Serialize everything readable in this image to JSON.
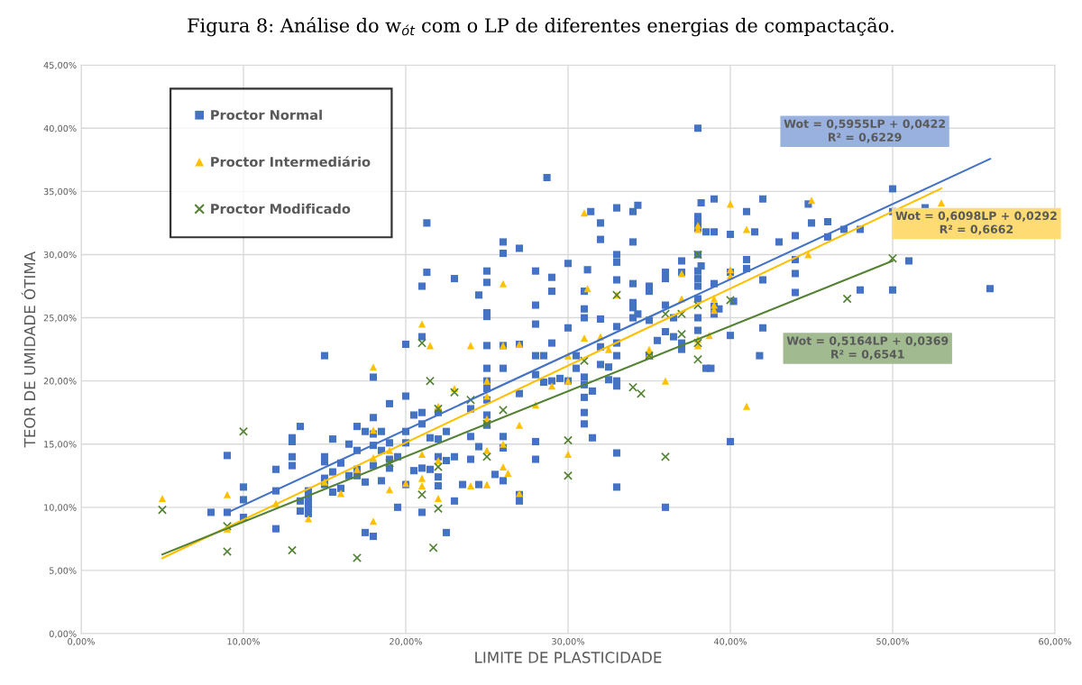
{
  "chart_data": {
    "type": "scatter",
    "title": "Figura 8: Análise do w$_{ót}$ com o LP de diferentes energias de compactação.",
    "xlabel": "LIMITE DE PLASTICIDADE",
    "ylabel": "TEOR DE UMIDADE ÓTIMA",
    "xlim": [
      0,
      60
    ],
    "ylim": [
      0,
      45
    ],
    "xticks": [
      {
        "value": 0,
        "label": "0,00%"
      },
      {
        "value": 10,
        "label": "10,00%"
      },
      {
        "value": 20,
        "label": "20,00%"
      },
      {
        "value": 30,
        "label": "30,00%"
      },
      {
        "value": 40,
        "label": "40,00%"
      },
      {
        "value": 50,
        "label": "50,00%"
      },
      {
        "value": 60,
        "label": "60,00%"
      }
    ],
    "yticks": [
      {
        "value": 0,
        "label": "0,00%"
      },
      {
        "value": 5,
        "label": "5,00%"
      },
      {
        "value": 10,
        "label": "10,00%"
      },
      {
        "value": 15,
        "label": "15,00%"
      },
      {
        "value": 20,
        "label": "20,00%"
      },
      {
        "value": 25,
        "label": "25,00%"
      },
      {
        "value": 30,
        "label": "30,00%"
      },
      {
        "value": 35,
        "label": "35,00%"
      },
      {
        "value": 40,
        "label": "40,00%"
      },
      {
        "value": 45,
        "label": "45,00%"
      }
    ],
    "grid": true,
    "legend": "top left",
    "series": [
      {
        "name": "Proctor Normal",
        "color": "#4472c4",
        "marker": "square",
        "x": [
          8,
          9,
          9,
          10,
          10,
          10,
          12,
          12,
          12,
          13,
          13,
          13,
          13,
          13.5,
          13.5,
          13.5,
          14,
          14,
          14,
          14,
          14,
          15,
          15,
          15,
          15,
          15,
          15.5,
          15.5,
          15.5,
          16,
          16,
          16.5,
          16.5,
          17,
          17,
          17,
          17,
          17.5,
          17.5,
          17.5,
          18,
          18,
          18,
          18,
          18,
          18,
          18.5,
          18.5,
          18.5,
          19,
          19,
          19,
          19,
          19.5,
          19.5,
          20,
          20,
          20,
          20,
          20,
          20.5,
          20.5,
          21,
          21,
          21,
          21,
          21,
          21,
          21.3,
          21.3,
          21.5,
          21.5,
          22,
          22,
          22,
          22,
          22,
          22.5,
          22.5,
          22.5,
          23,
          23,
          23,
          23.5,
          24,
          24,
          24,
          24.5,
          24.5,
          24.5,
          25,
          25,
          25,
          25,
          25,
          25,
          25,
          25,
          25,
          25,
          25,
          25.5,
          26,
          26,
          26,
          26,
          26,
          26,
          26,
          27,
          27,
          27,
          27,
          27,
          28,
          28,
          28,
          28,
          28,
          28,
          28,
          28.5,
          28.5,
          28.7,
          29,
          29,
          29,
          29,
          29.5,
          30,
          30,
          30,
          30.5,
          30.5,
          31,
          31,
          31,
          31,
          31,
          31,
          31,
          31,
          31.2,
          31.4,
          31.5,
          31.5,
          32,
          32,
          32,
          32,
          32,
          32.5,
          32.5,
          33,
          33,
          33,
          33,
          33,
          33,
          33,
          33,
          33,
          33,
          33,
          34,
          34,
          34,
          34,
          34,
          34,
          34.3,
          34.3,
          35,
          35,
          35,
          35,
          35.5,
          36,
          36,
          36,
          36,
          36,
          36.5,
          36.5,
          37,
          37,
          37,
          37,
          38,
          38,
          38,
          38,
          38,
          38,
          38,
          38,
          38,
          38,
          38,
          38.2,
          38.2,
          38.5,
          38.5,
          38.8,
          39,
          39,
          39,
          39,
          39,
          39.3,
          40,
          40,
          40,
          40,
          40.2,
          41,
          41,
          41,
          41.5,
          41.8,
          42,
          42,
          42,
          43,
          44,
          44,
          44,
          44,
          44.8,
          45,
          46,
          46,
          47,
          48,
          48,
          50,
          50,
          50,
          51,
          52,
          56
        ],
        "values": [
          9.6,
          14.1,
          9.6,
          11.6,
          10.6,
          9.2,
          13,
          11.3,
          8.3,
          15.5,
          15.2,
          14,
          13.3,
          16.4,
          10.5,
          9.7,
          11.3,
          10.8,
          10.4,
          10,
          9.5,
          22,
          14,
          13.6,
          12.3,
          11.8,
          15.4,
          12.8,
          11.2,
          13.5,
          11.5,
          15,
          12.5,
          16.4,
          14.5,
          13,
          12.5,
          16,
          12,
          8,
          20.3,
          17.1,
          15.8,
          14.9,
          13.3,
          7.7,
          16,
          14.5,
          12.1,
          18.2,
          15.1,
          13.8,
          13.1,
          14,
          10,
          22.9,
          18.8,
          16,
          15.1,
          11.8,
          17.3,
          12.9,
          27.5,
          23.5,
          17.5,
          16.6,
          13.1,
          9.6,
          32.5,
          28.6,
          15.5,
          13,
          17.5,
          15.4,
          14,
          12.4,
          11.7,
          16,
          13.7,
          8,
          28.1,
          14,
          10.5,
          11.8,
          17.8,
          15.6,
          13.8,
          26.8,
          14.8,
          11.8,
          28.7,
          27.8,
          25.4,
          25.1,
          22.8,
          21,
          20,
          19.4,
          18.5,
          17.3,
          16.5,
          12.6,
          31,
          30.1,
          22.8,
          21,
          15.6,
          14.7,
          12.1,
          30.5,
          22.9,
          19,
          11,
          10.5,
          28.7,
          26,
          24.5,
          22,
          20.5,
          15.2,
          13.8,
          22,
          19.9,
          36.1,
          28.2,
          27.1,
          23,
          20,
          20.2,
          29.3,
          24.2,
          20,
          22,
          21,
          27.1,
          25.7,
          25,
          20.3,
          19.7,
          18.7,
          16.6,
          17.5,
          28.8,
          33.4,
          19.2,
          15.5,
          32.5,
          31.2,
          24.9,
          21.3,
          22.7,
          20.1,
          21.1,
          33.7,
          30,
          29.4,
          28,
          24.3,
          23,
          22,
          20,
          19.6,
          14.3,
          11.6,
          33.4,
          31,
          27.7,
          26.2,
          25.8,
          25,
          33.9,
          25.3,
          27.5,
          27.1,
          24.8,
          22,
          23.2,
          28.6,
          28.1,
          26,
          23.9,
          10,
          25,
          23.5,
          29.5,
          28.6,
          23,
          22.5,
          40,
          33,
          32.5,
          32.1,
          30,
          28.7,
          28.1,
          27.5,
          26.5,
          25,
          24,
          34.1,
          29.1,
          31.8,
          21,
          21,
          34.4,
          31.8,
          27.7,
          25.9,
          25.3,
          25.7,
          31.6,
          28.6,
          23.6,
          15.2,
          26.3,
          29.6,
          33.4,
          28.9,
          31.8,
          22,
          34.4,
          28,
          24.2,
          31,
          31.5,
          29.6,
          28.5,
          27,
          34,
          32.5,
          32.6,
          31.4,
          32,
          32,
          27.2,
          35.2,
          33.4,
          27.2,
          29.5,
          33.7,
          27.3
        ]
      },
      {
        "name": "Proctor Intermediário",
        "color": "#ffc000",
        "marker": "triangle",
        "x": [
          5,
          9,
          9,
          12,
          14,
          15,
          16,
          17,
          18,
          18,
          18,
          18,
          19,
          19,
          20,
          21,
          21,
          21,
          21,
          21.5,
          22,
          22,
          22,
          23,
          24,
          24,
          25,
          25,
          25,
          25,
          25,
          26,
          26,
          26,
          26,
          26.3,
          27,
          27,
          27,
          28,
          29,
          30,
          30,
          30,
          31,
          31,
          31.2,
          32,
          32.5,
          33,
          35,
          35,
          36,
          37,
          37,
          38,
          38,
          38,
          38,
          38.7,
          39,
          39,
          39,
          40,
          40,
          40,
          41,
          41,
          44.8,
          45,
          53
        ],
        "values": [
          10.7,
          11,
          8.3,
          10.3,
          9.1,
          12,
          11.1,
          13,
          21.1,
          16.1,
          13.9,
          8.9,
          14.5,
          11.4,
          11.9,
          24.5,
          14.2,
          12.3,
          11.7,
          22.8,
          18,
          13.7,
          10.7,
          19.4,
          22.8,
          11.7,
          20,
          18.8,
          17,
          14.5,
          11.8,
          27.7,
          22.8,
          15,
          13.2,
          12.7,
          22.9,
          16.5,
          11.1,
          18.1,
          19.6,
          22,
          20,
          14.2,
          33.3,
          23.4,
          27.3,
          23.5,
          22.5,
          26.8,
          22.1,
          22.5,
          20,
          26.5,
          28.5,
          32.3,
          32,
          23.3,
          22.8,
          23.6,
          25.6,
          26.5,
          26,
          34,
          28.8,
          28.3,
          32,
          18,
          30,
          34.3,
          34.1
        ]
      },
      {
        "name": "Proctor Modificado",
        "color": "#548235",
        "marker": "cross",
        "x": [
          5,
          9,
          9,
          10,
          13,
          17,
          19,
          21,
          21,
          21.5,
          21.7,
          22,
          22,
          22,
          23,
          24,
          25,
          25,
          26,
          30,
          30,
          31,
          33,
          34,
          34.5,
          35,
          36,
          36,
          37,
          37,
          38,
          38,
          38,
          38,
          40,
          47.2,
          50
        ],
        "values": [
          9.8,
          8.5,
          6.5,
          16,
          6.6,
          6,
          13.5,
          23,
          11,
          20,
          6.8,
          17.8,
          13.2,
          9.9,
          19.1,
          18.5,
          16.6,
          14,
          17.7,
          15.3,
          12.5,
          21.6,
          26.8,
          19.5,
          19,
          22,
          25.3,
          14,
          25.3,
          23.7,
          30,
          26,
          21.7,
          23,
          26.4,
          26.5,
          29.7
        ]
      },
      {
        "type": "line",
        "color": "#4472c4",
        "marker": "none",
        "x": [
          9,
          56
        ],
        "values": [
          9.58,
          37.57
        ]
      },
      {
        "type": "line",
        "color": "#ffc000",
        "marker": "none",
        "x": [
          5,
          53
        ],
        "values": [
          5.97,
          35.24
        ]
      },
      {
        "type": "line",
        "color": "#548235",
        "marker": "none",
        "x": [
          5,
          50
        ],
        "values": [
          6.27,
          29.51
        ]
      }
    ],
    "annotations": [
      "Wot = 0,5955LP + 0,0422\nR² = 0,6229",
      "Wot = 0,6098LP + 0,0292\nR² = 0,6662",
      "Wot = 0,5164LP + 0,0369\nR² = 0,6541"
    ]
  }
}
